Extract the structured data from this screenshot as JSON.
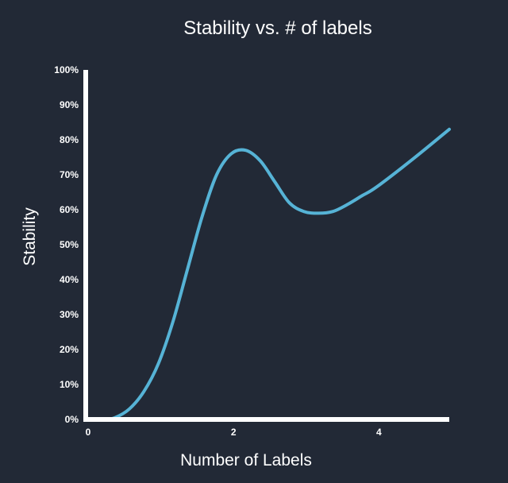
{
  "colors": {
    "background": "#222936",
    "axis": "#ffffff",
    "line": "#56b3d6",
    "text": "#ffffff"
  },
  "chart_data": {
    "type": "line",
    "title": "Stability vs. # of labels",
    "xlabel": "Number of Labels",
    "ylabel": "Stability",
    "xlim": [
      0,
      5
    ],
    "ylim": [
      0,
      1
    ],
    "x_ticks": [
      0,
      2,
      4
    ],
    "x_tick_labels": [
      "0",
      "2",
      "4"
    ],
    "y_ticks": [
      0,
      0.1,
      0.2,
      0.3,
      0.4,
      0.5,
      0.6,
      0.7,
      0.8,
      0.9,
      1.0
    ],
    "y_tick_labels": [
      "0%",
      "10%",
      "20%",
      "30%",
      "40%",
      "50%",
      "60%",
      "70%",
      "80%",
      "90%",
      "100%"
    ],
    "grid": false,
    "legend": "none",
    "series": [
      {
        "x": [
          0,
          0.25,
          0.4,
          0.6,
          0.8,
          1.0,
          1.2,
          1.4,
          1.6,
          1.8,
          2.0,
          2.2,
          2.4,
          2.6,
          2.8,
          3.0,
          3.2,
          3.4,
          3.6,
          3.8,
          4.0,
          4.5,
          5.0
        ],
        "y": [
          0,
          0.0,
          0.005,
          0.03,
          0.08,
          0.16,
          0.28,
          0.43,
          0.58,
          0.7,
          0.76,
          0.77,
          0.74,
          0.68,
          0.62,
          0.595,
          0.59,
          0.595,
          0.615,
          0.64,
          0.665,
          0.745,
          0.83
        ]
      }
    ]
  }
}
